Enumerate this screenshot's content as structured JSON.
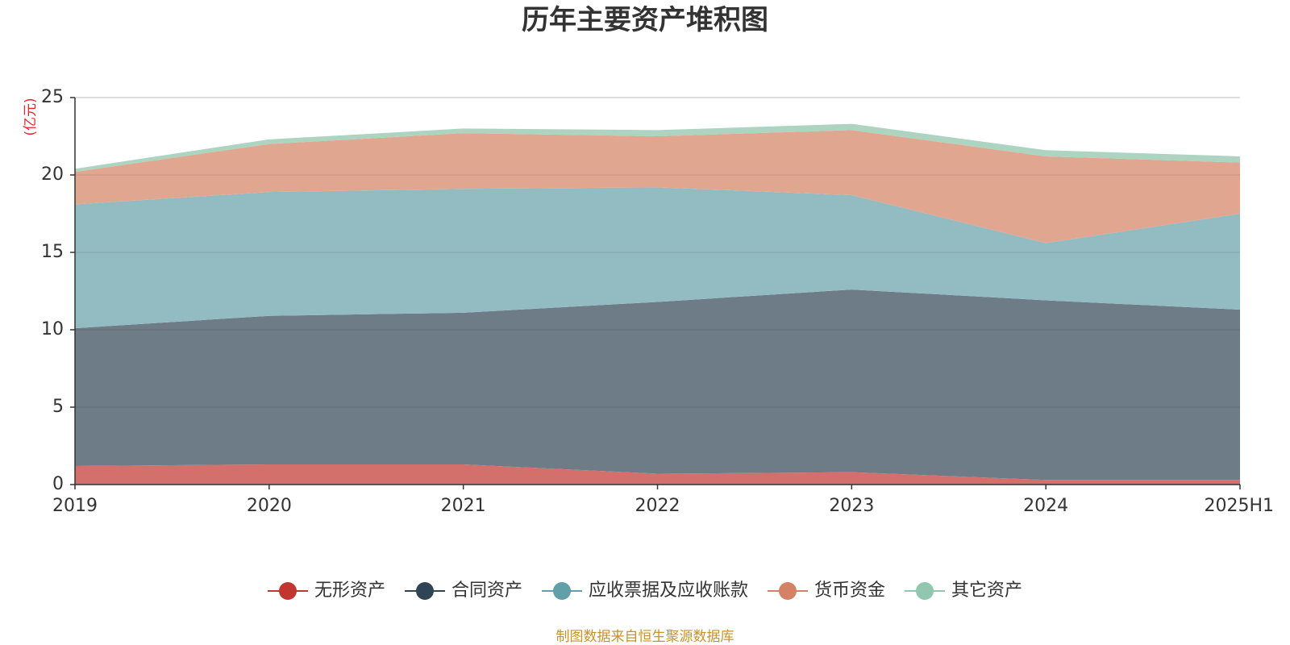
{
  "chart_data": {
    "type": "area",
    "title": "历年主要资产堆积图",
    "y_unit": "(亿元)",
    "x": [
      "2019",
      "2020",
      "2021",
      "2022",
      "2023",
      "2024",
      "2025H1"
    ],
    "ylim": [
      0,
      25
    ],
    "yticks": [
      0,
      5,
      10,
      15,
      20,
      25
    ],
    "stacked": true,
    "grid": true,
    "legend_position": "bottom",
    "series": [
      {
        "name": "无形资产",
        "values": [
          1.2,
          1.3,
          1.3,
          0.7,
          0.8,
          0.3,
          0.3
        ],
        "color": "#c23531",
        "fill": "#d4706c"
      },
      {
        "name": "合同资产",
        "values": [
          8.9,
          9.6,
          9.8,
          11.1,
          11.8,
          11.6,
          11.0
        ],
        "color": "#2f4554",
        "fill": "#6e7c87"
      },
      {
        "name": "应收票据及应收账款",
        "values": [
          8.0,
          8.0,
          8.0,
          7.4,
          6.1,
          3.7,
          6.2
        ],
        "color": "#61a0a8",
        "fill": "#92bcc2"
      },
      {
        "name": "货币资金",
        "values": [
          2.1,
          3.1,
          3.6,
          3.3,
          4.2,
          5.6,
          3.3
        ],
        "color": "#d48265",
        "fill": "#e0a68f"
      },
      {
        "name": "其它资产",
        "values": [
          0.2,
          0.3,
          0.3,
          0.4,
          0.4,
          0.4,
          0.4
        ],
        "color": "#91c7ae",
        "fill": "#acd4c1"
      }
    ]
  },
  "source_text": "制图数据来自恒生聚源数据库",
  "colors": {
    "unit_label": "#e8242b",
    "source_text": "#c8922a",
    "axis": "#333333",
    "grid": "#d8d8d8"
  }
}
